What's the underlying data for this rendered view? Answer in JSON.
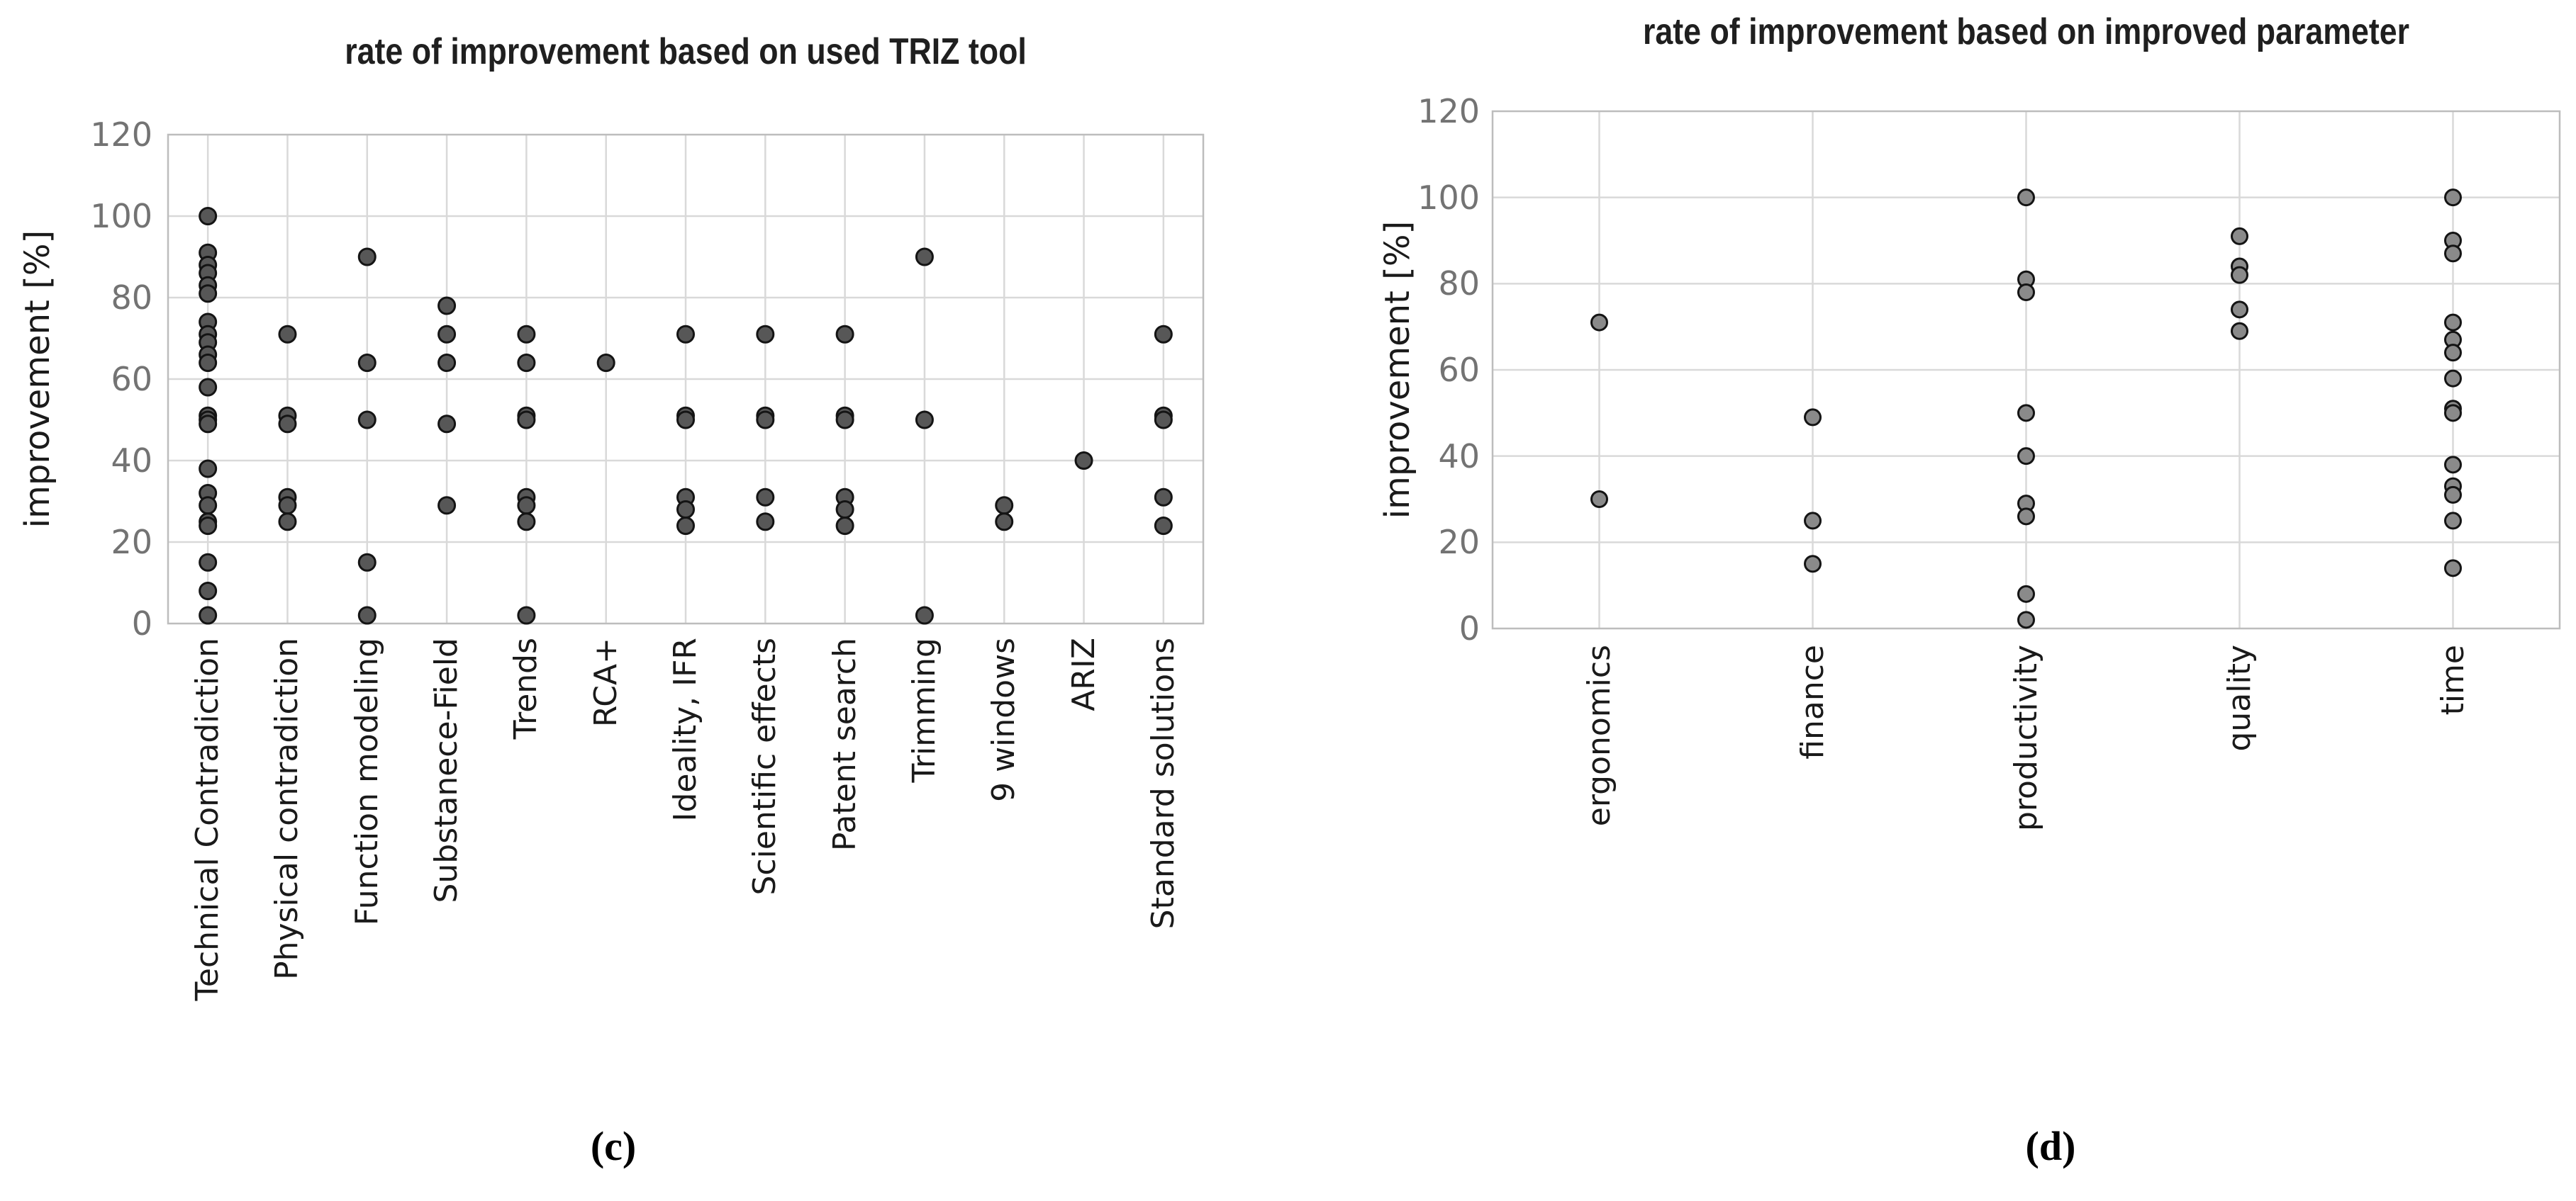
{
  "figure": {
    "background_color": "#ffffff",
    "captions": {
      "left": "(c)",
      "right": "(d)"
    }
  },
  "chart_data": [
    {
      "type": "scatter",
      "title": "rate of improvement based on used TRIZ tool",
      "xlabel": "",
      "ylabel": "improvement [%]",
      "caption": "(c)",
      "ylim": [
        0,
        120
      ],
      "yticks": [
        0,
        20,
        40,
        60,
        80,
        100,
        120
      ],
      "grid": true,
      "legend": "none",
      "marker": {
        "fill": "#575757",
        "stroke": "#141414",
        "radius": 11.5,
        "stroke_width": 3
      },
      "gridline_color": "#d9d9d9",
      "border_color": "#bdbdbd",
      "tick_label_color": "#737373",
      "categories": [
        "Technical Contradiction",
        "Physical contradiction",
        "Function modeling",
        "Substanece-Field",
        "Trends",
        "RCA+",
        "Ideality, IFR",
        "Scientific effects",
        "Patent search",
        "Trimming",
        "9 windows",
        "ARIZ",
        "Standard solutions"
      ],
      "values_by_category": [
        [
          100,
          91,
          88,
          86,
          83,
          81,
          74,
          71,
          69,
          66,
          64,
          58,
          51,
          50,
          49,
          38,
          32,
          29,
          25,
          24,
          15,
          8,
          2
        ],
        [
          71,
          51,
          49,
          31,
          29,
          25
        ],
        [
          90,
          64,
          50,
          15,
          2
        ],
        [
          78,
          71,
          64,
          49,
          29
        ],
        [
          71,
          64,
          51,
          50,
          31,
          29,
          25,
          2
        ],
        [
          64
        ],
        [
          71,
          51,
          50,
          31,
          28,
          24
        ],
        [
          71,
          51,
          50,
          31,
          25
        ],
        [
          71,
          51,
          50,
          31,
          28,
          24
        ],
        [
          90,
          50,
          2
        ],
        [
          29,
          25
        ],
        [
          40
        ],
        [
          71,
          51,
          50,
          31,
          24
        ]
      ]
    },
    {
      "type": "scatter",
      "title": "rate of improvement based on improved parameter",
      "xlabel": "",
      "ylabel": "improvement [%]",
      "caption": "(d)",
      "ylim": [
        0,
        120
      ],
      "yticks": [
        0,
        20,
        40,
        60,
        80,
        100,
        120
      ],
      "grid": true,
      "legend": "none",
      "marker": {
        "fill": "#8a8a8a",
        "stroke": "#141414",
        "radius": 11,
        "stroke_width": 3
      },
      "gridline_color": "#d9d9d9",
      "border_color": "#bdbdbd",
      "tick_label_color": "#737373",
      "categories": [
        "ergonomics",
        "finance",
        "productivity",
        "quality",
        "time"
      ],
      "values_by_category": [
        [
          71,
          30
        ],
        [
          49,
          25,
          15
        ],
        [
          100,
          81,
          78,
          50,
          40,
          29,
          26,
          8,
          2
        ],
        [
          91,
          84,
          82,
          74,
          69
        ],
        [
          100,
          90,
          87,
          71,
          67,
          64,
          58,
          51,
          50,
          38,
          33,
          31,
          25,
          14
        ]
      ]
    }
  ]
}
